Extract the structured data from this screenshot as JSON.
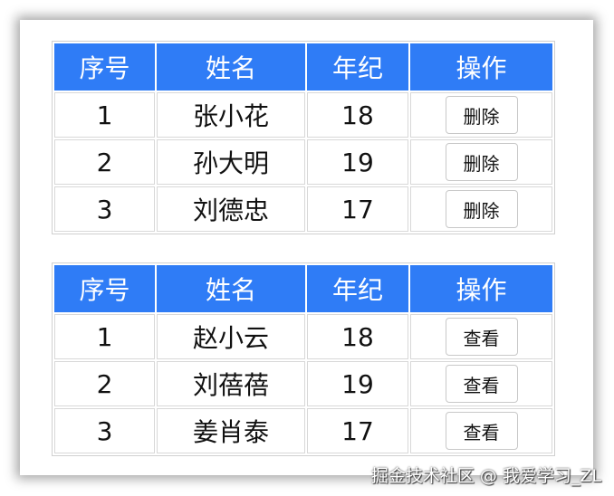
{
  "tables": [
    {
      "headers": [
        "序号",
        "姓名",
        "年纪",
        "操作"
      ],
      "rows": [
        {
          "index": "1",
          "name": "张小花",
          "age": "18",
          "action": "删除"
        },
        {
          "index": "2",
          "name": "孙大明",
          "age": "19",
          "action": "删除"
        },
        {
          "index": "3",
          "name": "刘德忠",
          "age": "17",
          "action": "删除"
        }
      ]
    },
    {
      "headers": [
        "序号",
        "姓名",
        "年纪",
        "操作"
      ],
      "rows": [
        {
          "index": "1",
          "name": "赵小云",
          "age": "18",
          "action": "查看"
        },
        {
          "index": "2",
          "name": "刘蓓蓓",
          "age": "19",
          "action": "查看"
        },
        {
          "index": "3",
          "name": "姜肖泰",
          "age": "17",
          "action": "查看"
        }
      ]
    }
  ],
  "colors": {
    "header_bg": "#2f7cf6"
  },
  "watermark": "掘金技术社区 @ 我爱学习_ZL"
}
